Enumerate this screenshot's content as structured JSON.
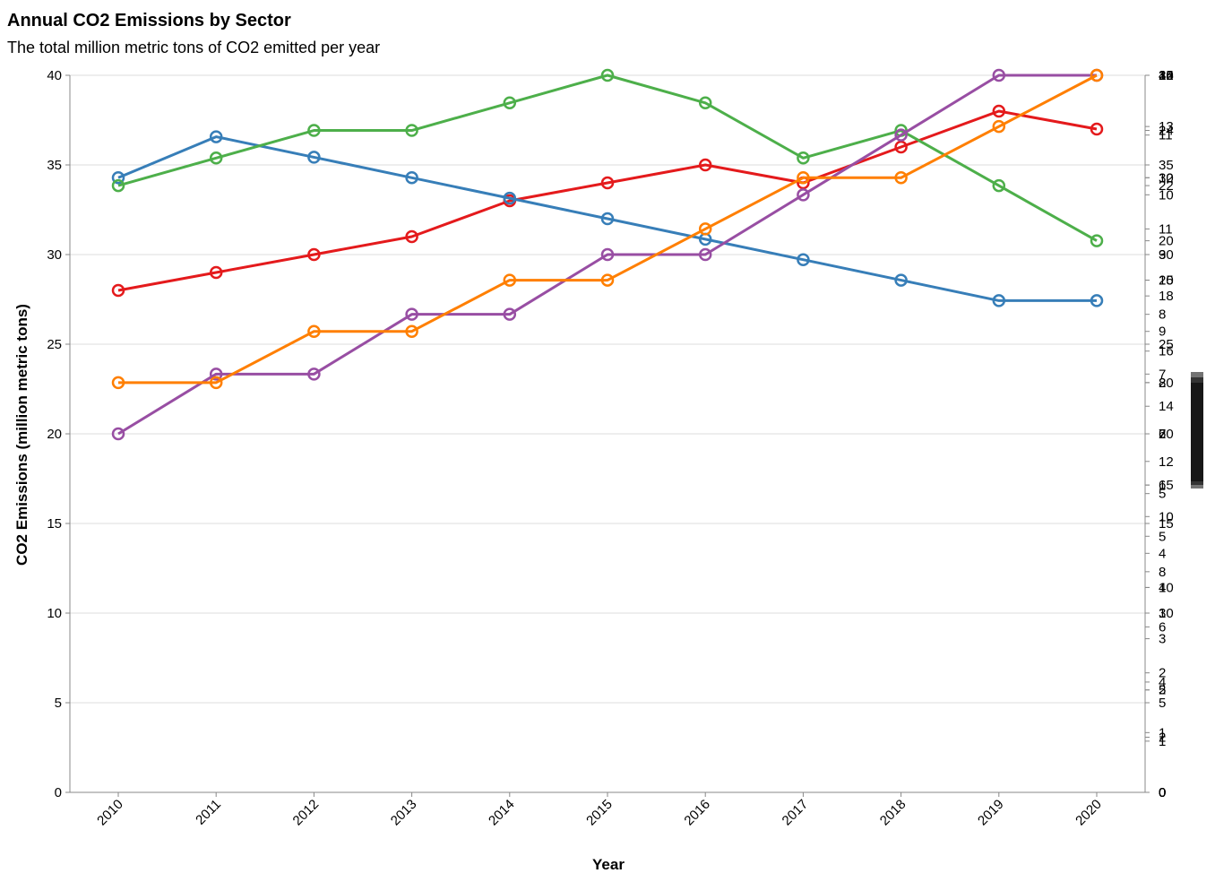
{
  "chart_data": {
    "type": "line",
    "title": "Annual CO2 Emissions by Sector",
    "subtitle": "The total million metric tons of CO2 emitted per year",
    "xlabel": "Year",
    "ylabel": "CO2 Emissions (million metric tons)",
    "x": [
      "2010",
      "2011",
      "2012",
      "2013",
      "2014",
      "2015",
      "2016",
      "2017",
      "2018",
      "2019",
      "2020"
    ],
    "ylim": [
      0,
      40
    ],
    "yticks": [
      0,
      5,
      10,
      15,
      20,
      25,
      30,
      35,
      40
    ],
    "grid": true,
    "legend": "none",
    "series": [
      {
        "color": "#e41a1c",
        "values": [
          28,
          29,
          30,
          31,
          33,
          34,
          35,
          34,
          36,
          38,
          37
        ]
      },
      {
        "color": "#377eb8",
        "values": [
          30,
          32,
          31,
          30,
          29,
          28,
          27,
          26,
          25,
          24,
          24
        ]
      },
      {
        "color": "#4daf4a",
        "values": [
          22,
          23,
          24,
          24,
          25,
          26,
          25,
          23,
          24,
          22,
          20
        ]
      },
      {
        "color": "#984ea3",
        "values": [
          6,
          7,
          7,
          8,
          8,
          9,
          9,
          10,
          11,
          12,
          12
        ]
      },
      {
        "color": "#ff7f00",
        "values": [
          8,
          8,
          9,
          9,
          10,
          10,
          11,
          12,
          12,
          13,
          14
        ]
      }
    ],
    "right_axes": [
      {
        "color": "#e41a1c",
        "domain": [
          0,
          40
        ],
        "ticks": [
          0,
          5,
          10,
          15,
          20,
          25,
          30,
          35,
          40
        ]
      },
      {
        "color": "#377eb8",
        "domain": [
          0,
          35
        ],
        "ticks": [
          0,
          5,
          10,
          15,
          20,
          25,
          30,
          35
        ]
      },
      {
        "color": "#4daf4a",
        "domain": [
          0,
          26
        ],
        "ticks": [
          0,
          2,
          4,
          6,
          8,
          10,
          12,
          14,
          16,
          18,
          20,
          22,
          24,
          26
        ]
      },
      {
        "color": "#984ea3",
        "domain": [
          0,
          12
        ],
        "ticks": [
          0,
          1,
          2,
          3,
          4,
          5,
          6,
          7,
          8,
          9,
          10,
          11,
          12
        ]
      },
      {
        "color": "#ff7f00",
        "domain": [
          0,
          14
        ],
        "ticks": [
          0,
          1,
          2,
          3,
          4,
          5,
          6,
          7,
          8,
          9,
          10,
          11,
          12,
          13,
          14
        ]
      }
    ]
  }
}
